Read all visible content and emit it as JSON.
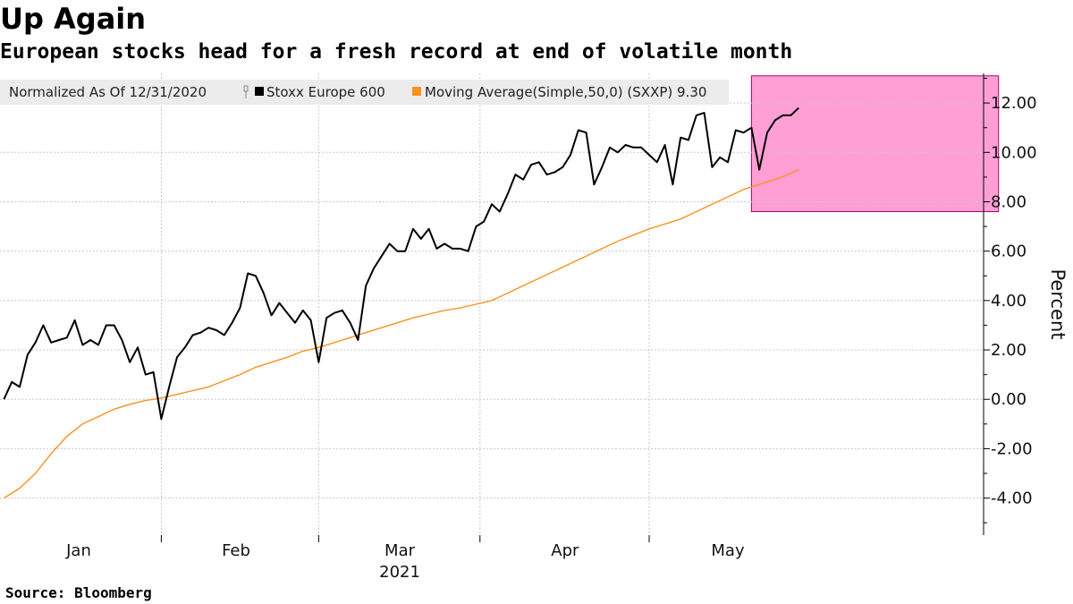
{
  "chart_data": {
    "type": "line",
    "title": "Up Again",
    "subtitle": "European stocks head for a fresh record at end of volatile month",
    "ylabel": "Percent",
    "ylim": [
      -5.5,
      13.2
    ],
    "y_ticks": [
      -4,
      -2,
      0,
      2,
      4,
      6,
      8,
      10,
      12
    ],
    "y_tick_labels": [
      "-4.00",
      "-2.00",
      "0.00",
      "2.00",
      "4.00",
      "6.00",
      "8.00",
      "10.00",
      "12.00"
    ],
    "x_range_days": [
      0,
      125
    ],
    "month_ticks": [
      {
        "label": "Jan",
        "day": 3
      },
      {
        "label": "Feb",
        "day": 34
      },
      {
        "label": "Mar",
        "day": 62
      },
      {
        "label": "Apr",
        "day": 93
      },
      {
        "label": "May",
        "day": 123
      }
    ],
    "year_label": "2021",
    "legend": {
      "prefix": "Normalized As Of 12/31/2020",
      "entries": [
        "Stoxx Europe 600",
        "Moving Average(Simple,50,0) (SXXP) 9.30"
      ]
    },
    "highlight": {
      "x_start_day": 95.5,
      "x_end_day": 126.9,
      "y_low": 7.6,
      "y_high": 13.1,
      "color": "#ff9fd6"
    },
    "series": [
      {
        "name": "Stoxx Europe 600",
        "color": "#000000",
        "points": [
          [
            0.5,
            0.0
          ],
          [
            1.5,
            0.7
          ],
          [
            2.5,
            0.5
          ],
          [
            3.5,
            1.8
          ],
          [
            4.5,
            2.3
          ],
          [
            5.5,
            3.0
          ],
          [
            6.5,
            2.3
          ],
          [
            7.5,
            2.4
          ],
          [
            8.5,
            2.5
          ],
          [
            9.5,
            3.2
          ],
          [
            10.5,
            2.2
          ],
          [
            11.5,
            2.4
          ],
          [
            12.5,
            2.2
          ],
          [
            13.5,
            3.0
          ],
          [
            14.5,
            3.0
          ],
          [
            15.5,
            2.4
          ],
          [
            16.5,
            1.5
          ],
          [
            17.5,
            2.1
          ],
          [
            18.5,
            1.0
          ],
          [
            19.5,
            1.1
          ],
          [
            20.5,
            -0.8
          ],
          [
            21.5,
            0.5
          ],
          [
            22.5,
            1.7
          ],
          [
            23.5,
            2.1
          ],
          [
            24.5,
            2.6
          ],
          [
            25.5,
            2.7
          ],
          [
            26.5,
            2.9
          ],
          [
            27.5,
            2.8
          ],
          [
            28.5,
            2.6
          ],
          [
            29.5,
            3.1
          ],
          [
            30.5,
            3.7
          ],
          [
            31.5,
            5.1
          ],
          [
            32.5,
            5.0
          ],
          [
            33.5,
            4.3
          ],
          [
            34.5,
            3.4
          ],
          [
            35.5,
            3.9
          ],
          [
            36.5,
            3.5
          ],
          [
            37.5,
            3.1
          ],
          [
            38.5,
            3.6
          ],
          [
            39.5,
            3.2
          ],
          [
            40.5,
            1.5
          ],
          [
            41.5,
            3.3
          ],
          [
            42.5,
            3.5
          ],
          [
            43.5,
            3.6
          ],
          [
            44.5,
            3.1
          ],
          [
            45.5,
            2.4
          ],
          [
            46.5,
            4.6
          ],
          [
            47.5,
            5.3
          ],
          [
            48.5,
            5.8
          ],
          [
            49.5,
            6.3
          ],
          [
            50.5,
            6.0
          ],
          [
            51.5,
            6.0
          ],
          [
            52.5,
            6.9
          ],
          [
            53.5,
            6.5
          ],
          [
            54.5,
            6.9
          ],
          [
            55.5,
            6.1
          ],
          [
            56.5,
            6.3
          ],
          [
            57.5,
            6.1
          ],
          [
            58.5,
            6.1
          ],
          [
            59.5,
            6.0
          ],
          [
            60.5,
            7.0
          ],
          [
            61.5,
            7.2
          ],
          [
            62.5,
            7.9
          ],
          [
            63.5,
            7.6
          ],
          [
            64.5,
            8.3
          ],
          [
            65.5,
            9.1
          ],
          [
            66.5,
            8.9
          ],
          [
            67.5,
            9.5
          ],
          [
            68.5,
            9.6
          ],
          [
            69.5,
            9.1
          ],
          [
            70.5,
            9.2
          ],
          [
            71.5,
            9.4
          ],
          [
            72.5,
            9.9
          ],
          [
            73.5,
            10.9
          ],
          [
            74.5,
            10.8
          ],
          [
            75.5,
            8.7
          ],
          [
            76.5,
            9.4
          ],
          [
            77.5,
            10.2
          ],
          [
            78.5,
            10.0
          ],
          [
            79.5,
            10.3
          ],
          [
            80.5,
            10.2
          ],
          [
            81.5,
            10.2
          ],
          [
            82.5,
            9.9
          ],
          [
            83.5,
            9.6
          ],
          [
            84.5,
            10.3
          ],
          [
            85.5,
            8.7
          ],
          [
            86.5,
            10.6
          ],
          [
            87.5,
            10.5
          ],
          [
            88.5,
            11.5
          ],
          [
            89.5,
            11.6
          ],
          [
            90.5,
            9.4
          ],
          [
            91.5,
            9.8
          ],
          [
            92.5,
            9.6
          ],
          [
            93.5,
            10.9
          ],
          [
            94.5,
            10.8
          ],
          [
            95.5,
            11.0
          ],
          [
            96.5,
            9.3
          ],
          [
            97.5,
            10.8
          ],
          [
            98.5,
            11.3
          ],
          [
            99.5,
            11.5
          ],
          [
            100.5,
            11.5
          ],
          [
            101.5,
            11.8
          ]
        ]
      },
      {
        "name": "Moving Average(Simple,50,0) (SXXP) 9.30",
        "color": "#f7931e",
        "points": [
          [
            0.5,
            -4.0
          ],
          [
            2.5,
            -3.6
          ],
          [
            4.5,
            -3.0
          ],
          [
            6.5,
            -2.2
          ],
          [
            8.5,
            -1.5
          ],
          [
            10.5,
            -1.0
          ],
          [
            12.5,
            -0.7
          ],
          [
            14.5,
            -0.4
          ],
          [
            16.5,
            -0.2
          ],
          [
            18.5,
            -0.05
          ],
          [
            20.5,
            0.05
          ],
          [
            22.5,
            0.2
          ],
          [
            24.5,
            0.35
          ],
          [
            26.5,
            0.5
          ],
          [
            28.5,
            0.75
          ],
          [
            30.5,
            1.0
          ],
          [
            32.5,
            1.3
          ],
          [
            34.5,
            1.5
          ],
          [
            36.5,
            1.7
          ],
          [
            38.5,
            1.95
          ],
          [
            40.5,
            2.1
          ],
          [
            42.5,
            2.3
          ],
          [
            44.5,
            2.5
          ],
          [
            46.5,
            2.7
          ],
          [
            48.5,
            2.9
          ],
          [
            50.5,
            3.1
          ],
          [
            52.5,
            3.3
          ],
          [
            54.5,
            3.45
          ],
          [
            56.5,
            3.6
          ],
          [
            58.5,
            3.7
          ],
          [
            60.5,
            3.85
          ],
          [
            62.5,
            4.0
          ],
          [
            64.5,
            4.3
          ],
          [
            66.5,
            4.6
          ],
          [
            68.5,
            4.9
          ],
          [
            70.5,
            5.2
          ],
          [
            72.5,
            5.5
          ],
          [
            74.5,
            5.8
          ],
          [
            76.5,
            6.1
          ],
          [
            78.5,
            6.4
          ],
          [
            80.5,
            6.65
          ],
          [
            82.5,
            6.9
          ],
          [
            84.5,
            7.1
          ],
          [
            86.5,
            7.3
          ],
          [
            88.5,
            7.6
          ],
          [
            90.5,
            7.9
          ],
          [
            92.5,
            8.2
          ],
          [
            94.5,
            8.5
          ],
          [
            96.5,
            8.7
          ],
          [
            98.5,
            8.9
          ],
          [
            100.5,
            9.15
          ],
          [
            101.5,
            9.3
          ]
        ]
      }
    ]
  },
  "footer": {
    "source": "Source: Bloomberg"
  }
}
